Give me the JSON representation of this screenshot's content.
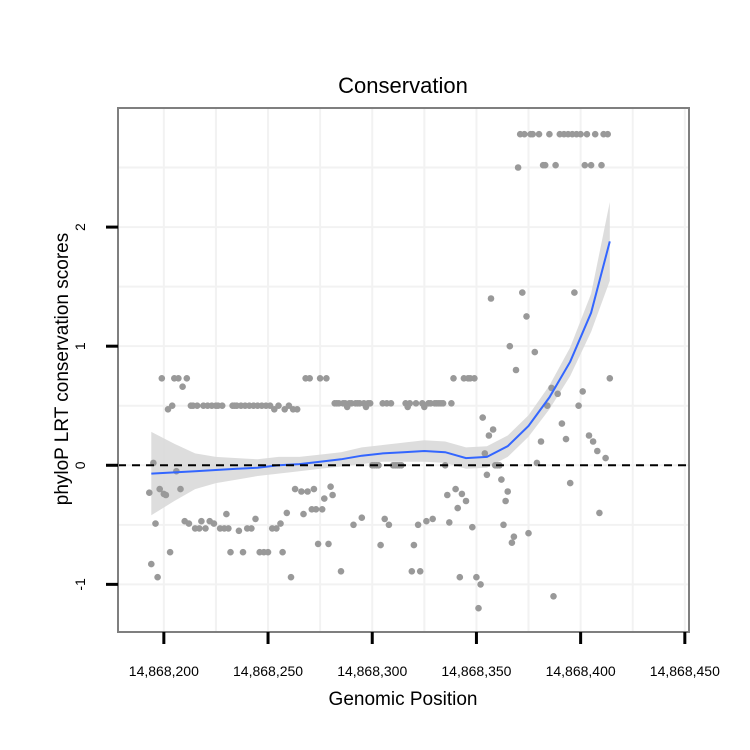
{
  "chart_data": {
    "type": "scatter",
    "title": "Conservation",
    "xlabel": "Genomic Position",
    "ylabel": "phyloP LRT conservation scores",
    "xlim": [
      14868178,
      14868452
    ],
    "ylim": [
      -1.4,
      3.0
    ],
    "x_ticks": [
      {
        "value": 14868200,
        "label": "14,868,200"
      },
      {
        "value": 14868250,
        "label": "14,868,250"
      },
      {
        "value": 14868300,
        "label": "14,868,300"
      },
      {
        "value": 14868350,
        "label": "14,868,350"
      },
      {
        "value": 14868400,
        "label": "14,868,400"
      },
      {
        "value": 14868450,
        "label": "14,868,450"
      }
    ],
    "y_ticks": [
      {
        "value": -1,
        "label": "-1"
      },
      {
        "value": 0,
        "label": "0"
      },
      {
        "value": 1,
        "label": "1"
      },
      {
        "value": 2,
        "label": "2"
      }
    ],
    "grid": true,
    "reference_line": {
      "y": 0,
      "style": "dashed"
    },
    "colors": {
      "points": "#999999",
      "smooth": "#3366ff",
      "ribbon": "#d9d9d9",
      "border": "#7f7f7f",
      "grid": "#f2f2f2"
    },
    "points": [
      [
        14868193,
        -0.23
      ],
      [
        14868194,
        -0.83
      ],
      [
        14868195,
        0.02
      ],
      [
        14868196,
        -0.49
      ],
      [
        14868197,
        -0.94
      ],
      [
        14868198,
        -0.2
      ],
      [
        14868199,
        0.73
      ],
      [
        14868200,
        -0.24
      ],
      [
        14868201,
        -0.25
      ],
      [
        14868202,
        0.47
      ],
      [
        14868203,
        -0.73
      ],
      [
        14868204,
        0.5
      ],
      [
        14868205,
        0.73
      ],
      [
        14868206,
        -0.05
      ],
      [
        14868207,
        0.73
      ],
      [
        14868208,
        -0.2
      ],
      [
        14868209,
        0.66
      ],
      [
        14868210,
        -0.47
      ],
      [
        14868211,
        0.73
      ],
      [
        14868212,
        -0.49
      ],
      [
        14868213,
        0.5
      ],
      [
        14868214,
        0.5
      ],
      [
        14868215,
        -0.53
      ],
      [
        14868216,
        0.5
      ],
      [
        14868217,
        -0.53
      ],
      [
        14868218,
        -0.47
      ],
      [
        14868219,
        0.5
      ],
      [
        14868220,
        -0.53
      ],
      [
        14868221,
        0.5
      ],
      [
        14868222,
        -0.47
      ],
      [
        14868223,
        0.5
      ],
      [
        14868224,
        -0.49
      ],
      [
        14868225,
        0.5
      ],
      [
        14868226,
        0.5
      ],
      [
        14868227,
        -0.53
      ],
      [
        14868228,
        0.5
      ],
      [
        14868229,
        -0.53
      ],
      [
        14868230,
        -0.41
      ],
      [
        14868231,
        -0.53
      ],
      [
        14868232,
        -0.73
      ],
      [
        14868233,
        0.5
      ],
      [
        14868234,
        0.5
      ],
      [
        14868235,
        0.5
      ],
      [
        14868236,
        -0.55
      ],
      [
        14868237,
        0.5
      ],
      [
        14868238,
        -0.73
      ],
      [
        14868239,
        0.5
      ],
      [
        14868240,
        -0.53
      ],
      [
        14868241,
        0.5
      ],
      [
        14868242,
        -0.53
      ],
      [
        14868243,
        0.5
      ],
      [
        14868244,
        -0.45
      ],
      [
        14868245,
        0.5
      ],
      [
        14868246,
        -0.73
      ],
      [
        14868247,
        0.5
      ],
      [
        14868248,
        -0.73
      ],
      [
        14868249,
        0.5
      ],
      [
        14868250,
        -0.73
      ],
      [
        14868251,
        0.5
      ],
      [
        14868252,
        -0.53
      ],
      [
        14868253,
        0.47
      ],
      [
        14868254,
        -0.53
      ],
      [
        14868255,
        0.5
      ],
      [
        14868256,
        -0.49
      ],
      [
        14868257,
        -0.73
      ],
      [
        14868258,
        0.47
      ],
      [
        14868259,
        -0.4
      ],
      [
        14868260,
        0.5
      ],
      [
        14868261,
        -0.94
      ],
      [
        14868262,
        0.47
      ],
      [
        14868263,
        -0.2
      ],
      [
        14868264,
        0.47
      ],
      [
        14868266,
        -0.22
      ],
      [
        14868267,
        -0.41
      ],
      [
        14868268,
        0.73
      ],
      [
        14868269,
        -0.22
      ],
      [
        14868270,
        0.73
      ],
      [
        14868271,
        -0.37
      ],
      [
        14868272,
        -0.2
      ],
      [
        14868273,
        -0.37
      ],
      [
        14868274,
        -0.66
      ],
      [
        14868275,
        0.73
      ],
      [
        14868276,
        -0.37
      ],
      [
        14868277,
        -0.28
      ],
      [
        14868278,
        0.73
      ],
      [
        14868279,
        -0.66
      ],
      [
        14868280,
        -0.18
      ],
      [
        14868281,
        -0.25
      ],
      [
        14868282,
        0.52
      ],
      [
        14868283,
        0.52
      ],
      [
        14868284,
        0.52
      ],
      [
        14868285,
        -0.89
      ],
      [
        14868286,
        0.52
      ],
      [
        14868287,
        0.52
      ],
      [
        14868288,
        0.49
      ],
      [
        14868289,
        0.52
      ],
      [
        14868290,
        0.52
      ],
      [
        14868291,
        -0.5
      ],
      [
        14868292,
        0.52
      ],
      [
        14868293,
        0.52
      ],
      [
        14868294,
        0.52
      ],
      [
        14868295,
        -0.44
      ],
      [
        14868296,
        0.52
      ],
      [
        14868297,
        0.49
      ],
      [
        14868298,
        0.52
      ],
      [
        14868299,
        0.52
      ],
      [
        14868300,
        0.0
      ],
      [
        14868301,
        0.0
      ],
      [
        14868302,
        0.0
      ],
      [
        14868303,
        0.0
      ],
      [
        14868304,
        -0.67
      ],
      [
        14868305,
        0.52
      ],
      [
        14868306,
        -0.45
      ],
      [
        14868307,
        0.52
      ],
      [
        14868308,
        -0.5
      ],
      [
        14868309,
        0.52
      ],
      [
        14868310,
        0.0
      ],
      [
        14868311,
        0.0
      ],
      [
        14868312,
        0.0
      ],
      [
        14868313,
        0.0
      ],
      [
        14868314,
        0.0
      ],
      [
        14868316,
        0.52
      ],
      [
        14868317,
        0.49
      ],
      [
        14868318,
        0.52
      ],
      [
        14868319,
        -0.89
      ],
      [
        14868320,
        -0.67
      ],
      [
        14868321,
        0.52
      ],
      [
        14868322,
        -0.5
      ],
      [
        14868323,
        -0.89
      ],
      [
        14868324,
        0.52
      ],
      [
        14868325,
        0.49
      ],
      [
        14868326,
        -0.47
      ],
      [
        14868327,
        0.52
      ],
      [
        14868328,
        0.52
      ],
      [
        14868329,
        -0.45
      ],
      [
        14868330,
        0.52
      ],
      [
        14868331,
        0.52
      ],
      [
        14868332,
        0.52
      ],
      [
        14868333,
        0.52
      ],
      [
        14868334,
        0.52
      ],
      [
        14868335,
        0.0
      ],
      [
        14868336,
        -0.25
      ],
      [
        14868337,
        -0.48
      ],
      [
        14868338,
        0.52
      ],
      [
        14868339,
        0.73
      ],
      [
        14868340,
        -0.2
      ],
      [
        14868341,
        -0.36
      ],
      [
        14868342,
        -0.94
      ],
      [
        14868343,
        -0.24
      ],
      [
        14868344,
        0.73
      ],
      [
        14868345,
        -0.3
      ],
      [
        14868346,
        0.73
      ],
      [
        14868347,
        0.73
      ],
      [
        14868348,
        -0.52
      ],
      [
        14868349,
        0.73
      ],
      [
        14868350,
        -0.94
      ],
      [
        14868351,
        -1.2
      ],
      [
        14868352,
        -1.0
      ],
      [
        14868353,
        0.4
      ],
      [
        14868354,
        0.1
      ],
      [
        14868355,
        -0.08
      ],
      [
        14868356,
        0.25
      ],
      [
        14868357,
        1.4
      ],
      [
        14868358,
        0.3
      ],
      [
        14868359,
        0.0
      ],
      [
        14868360,
        0.0
      ],
      [
        14868361,
        0.0
      ],
      [
        14868362,
        -0.12
      ],
      [
        14868363,
        -0.5
      ],
      [
        14868364,
        -0.3
      ],
      [
        14868365,
        -0.22
      ],
      [
        14868366,
        1.0
      ],
      [
        14868367,
        -0.65
      ],
      [
        14868368,
        -0.6
      ],
      [
        14868369,
        0.8
      ],
      [
        14868370,
        2.5
      ],
      [
        14868371,
        2.78
      ],
      [
        14868372,
        1.45
      ],
      [
        14868373,
        2.78
      ],
      [
        14868374,
        1.25
      ],
      [
        14868375,
        -0.57
      ],
      [
        14868376,
        2.78
      ],
      [
        14868377,
        2.78
      ],
      [
        14868378,
        0.95
      ],
      [
        14868379,
        0.02
      ],
      [
        14868380,
        2.78
      ],
      [
        14868381,
        0.2
      ],
      [
        14868382,
        2.52
      ],
      [
        14868383,
        2.52
      ],
      [
        14868384,
        0.5
      ],
      [
        14868385,
        2.78
      ],
      [
        14868386,
        0.65
      ],
      [
        14868387,
        -1.1
      ],
      [
        14868388,
        2.52
      ],
      [
        14868389,
        0.6
      ],
      [
        14868390,
        2.78
      ],
      [
        14868391,
        0.35
      ],
      [
        14868392,
        2.78
      ],
      [
        14868393,
        0.22
      ],
      [
        14868394,
        2.78
      ],
      [
        14868395,
        -0.15
      ],
      [
        14868396,
        2.78
      ],
      [
        14868397,
        1.45
      ],
      [
        14868398,
        2.78
      ],
      [
        14868399,
        0.5
      ],
      [
        14868400,
        2.78
      ],
      [
        14868401,
        0.62
      ],
      [
        14868402,
        2.52
      ],
      [
        14868403,
        2.78
      ],
      [
        14868404,
        0.25
      ],
      [
        14868405,
        2.52
      ],
      [
        14868406,
        0.2
      ],
      [
        14868407,
        2.78
      ],
      [
        14868408,
        0.12
      ],
      [
        14868409,
        -0.4
      ],
      [
        14868410,
        2.52
      ],
      [
        14868411,
        2.78
      ],
      [
        14868412,
        0.06
      ],
      [
        14868413,
        2.78
      ],
      [
        14868414,
        0.73
      ]
    ],
    "smooth": {
      "method": "loess",
      "x": [
        14868194,
        14868205,
        14868215,
        14868225,
        14868235,
        14868245,
        14868255,
        14868265,
        14868275,
        14868285,
        14868295,
        14868305,
        14868315,
        14868325,
        14868335,
        14868345,
        14868355,
        14868365,
        14868375,
        14868385,
        14868395,
        14868405,
        14868414
      ],
      "y": [
        -0.07,
        -0.06,
        -0.05,
        -0.04,
        -0.03,
        -0.02,
        0.0,
        0.01,
        0.03,
        0.05,
        0.08,
        0.1,
        0.11,
        0.12,
        0.11,
        0.06,
        0.07,
        0.16,
        0.33,
        0.57,
        0.87,
        1.28,
        1.88
      ],
      "lower": [
        -0.42,
        -0.3,
        -0.2,
        -0.15,
        -0.12,
        -0.09,
        -0.07,
        -0.05,
        -0.03,
        -0.01,
        0.01,
        0.03,
        0.03,
        0.03,
        0.02,
        -0.03,
        -0.02,
        0.07,
        0.24,
        0.47,
        0.75,
        1.12,
        1.55
      ],
      "upper": [
        0.28,
        0.18,
        0.1,
        0.07,
        0.06,
        0.05,
        0.07,
        0.07,
        0.09,
        0.11,
        0.15,
        0.17,
        0.19,
        0.21,
        0.2,
        0.15,
        0.16,
        0.25,
        0.42,
        0.67,
        0.99,
        1.44,
        2.21
      ]
    }
  }
}
